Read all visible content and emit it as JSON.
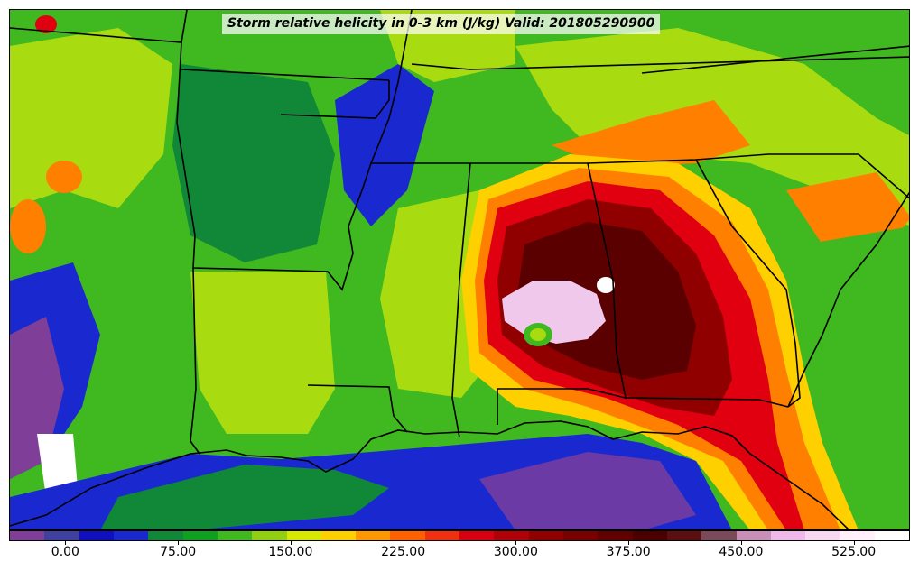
{
  "title": "Storm relative helicity in 0-3 km (J/kg) Valid: 201805290900",
  "colorbar": {
    "colors": [
      "#7f3f98",
      "#4040a0",
      "#1010c0",
      "#1a28d0",
      "#108838",
      "#10a020",
      "#40b820",
      "#90d010",
      "#d8e800",
      "#ffd000",
      "#ff9800",
      "#ff6000",
      "#f03010",
      "#d80010",
      "#b00008",
      "#900000",
      "#780000",
      "#600000",
      "#4a0000",
      "#5a1010",
      "#7a4a5a",
      "#c890b8",
      "#f0b8e8",
      "#f8d8f0",
      "#fff0fc",
      "#ffffff"
    ],
    "tick_labels": [
      "0.00",
      "75.00",
      "150.00",
      "225.00",
      "300.00",
      "375.00",
      "450.00",
      "525.00"
    ],
    "tick_values": [
      0,
      75,
      150,
      225,
      300,
      375,
      450,
      525
    ],
    "range": [
      -37.5,
      562.5
    ]
  },
  "map": {
    "region": "South-central and southeastern United States",
    "palette": {
      "purple": "#7f3f98",
      "blue": "#1a28d0",
      "dark_green": "#108838",
      "green": "#40b820",
      "lime": "#a8dc10",
      "yellow": "#ffd000",
      "orange": "#ff8000",
      "red": "#e00010",
      "dark_red": "#900000",
      "maroon": "#5a0000",
      "pink": "#f0c8ec",
      "white": "#ffffff",
      "border": "#000000"
    }
  }
}
